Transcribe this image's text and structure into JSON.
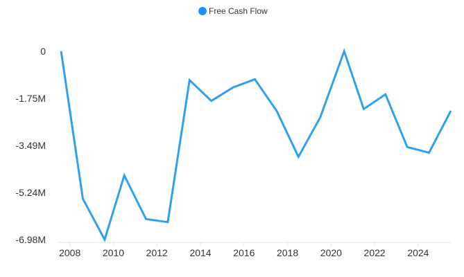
{
  "chart_data": {
    "type": "line",
    "legend": {
      "position": "top-center"
    },
    "series": [
      {
        "name": "Free Cash Flow",
        "color": "#2f9ff0",
        "marker_color": "#1e90ff",
        "x": [
          2007.6,
          2008.6,
          2009.6,
          2010.5,
          2011.5,
          2012.5,
          2013.5,
          2014.5,
          2015.5,
          2016.5,
          2017.5,
          2018.5,
          2019.5,
          2020.6,
          2021.5,
          2022.5,
          2023.5,
          2024.5,
          2025.5
        ],
        "y": [
          0,
          -5.47,
          -6.98,
          -4.6,
          -6.22,
          -6.33,
          -1.07,
          -1.84,
          -1.34,
          -1.04,
          -2.21,
          -3.91,
          -2.45,
          0,
          -2.14,
          -1.6,
          -3.55,
          -3.76,
          -2.21
        ]
      }
    ],
    "y_unit": "millions",
    "xlim": [
      2007.5,
      2025.5
    ],
    "ylim": [
      -6.98,
      0
    ],
    "x_ticks": [
      2008,
      2010,
      2012,
      2014,
      2016,
      2018,
      2020,
      2022,
      2024
    ],
    "x_tick_labels": [
      "2008",
      "2010",
      "2012",
      "2014",
      "2016",
      "2018",
      "2020",
      "2022",
      "2024"
    ],
    "y_ticks": [
      0,
      -1.75,
      -3.49,
      -5.24,
      -6.98
    ],
    "y_tick_labels": [
      "0",
      "-1.75M",
      "-3.49M",
      "-5.24M",
      "-6.98M"
    ],
    "grid": false,
    "title": "",
    "xlabel": "",
    "ylabel": ""
  }
}
